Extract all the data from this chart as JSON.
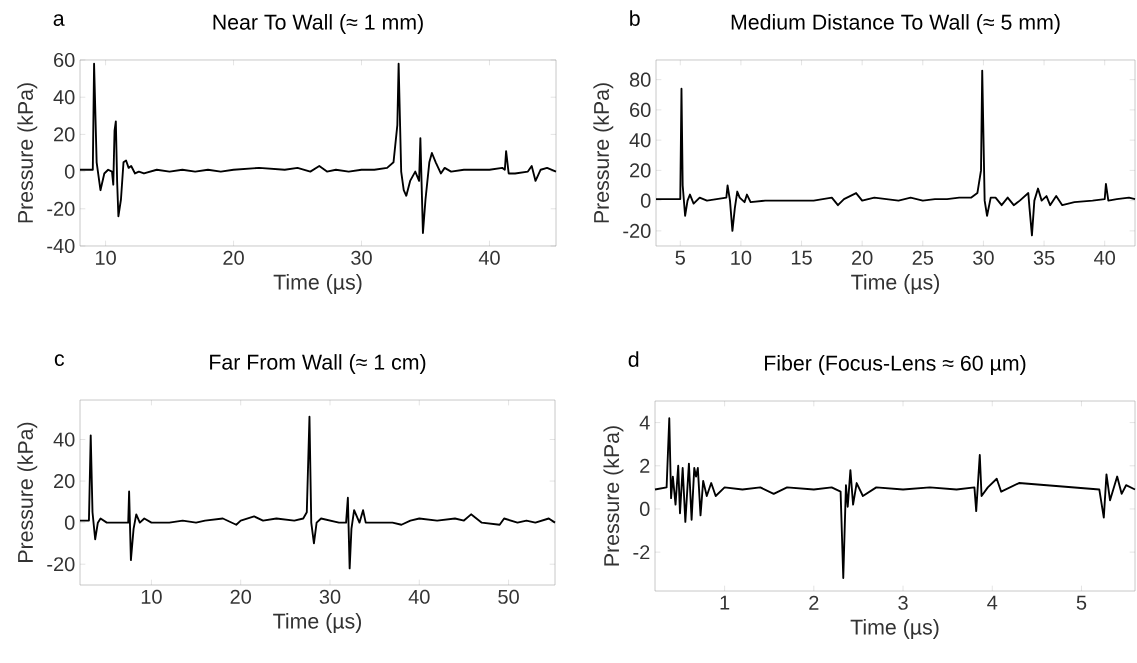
{
  "chart_data": [
    {
      "type": "line",
      "title": "Near To Wall (≈ 1 mm)",
      "annotations": [
        "a"
      ],
      "xlabel": "Time (µs)",
      "ylabel": "Pressure (kPa)",
      "color": "#000000",
      "x": [
        8,
        9.0,
        9.1,
        9.3,
        9.6,
        9.9,
        10.2,
        10.5,
        10.6,
        10.7,
        10.8,
        10.9,
        11.0,
        11.2,
        11.4,
        11.6,
        11.8,
        12.0,
        12.3,
        12.6,
        13,
        14,
        15,
        16,
        17,
        18,
        19,
        20,
        22,
        24,
        25,
        26,
        26.7,
        27.3,
        28,
        29,
        30,
        31,
        32,
        32.5,
        32.8,
        32.9,
        33.1,
        33.3,
        33.5,
        33.8,
        34.2,
        34.5,
        34.6,
        34.8,
        35.0,
        35.3,
        35.5,
        35.8,
        36.2,
        36.5,
        37,
        38,
        39,
        40,
        41,
        41.2,
        41.3,
        41.5,
        42,
        43,
        43.3,
        43.6,
        44,
        44.5,
        45.2
      ],
      "values": [
        1,
        1,
        58,
        5,
        -10,
        -1,
        1,
        0,
        -7,
        22,
        27,
        -5,
        -24,
        -15,
        5,
        6,
        2,
        3,
        -1,
        0,
        -1,
        1,
        0,
        1,
        0,
        1,
        0,
        1,
        2,
        1,
        2,
        0,
        3,
        0,
        1,
        0,
        1,
        1,
        2,
        5,
        25,
        58,
        0,
        -10,
        -13,
        -5,
        0,
        -5,
        18,
        -33,
        -15,
        5,
        10,
        5,
        -1,
        2,
        0,
        1,
        1,
        1,
        2,
        1,
        11,
        -1,
        -1,
        0,
        3,
        -5,
        1,
        2,
        0
      ],
      "xlim": [
        8,
        45.2
      ],
      "ylim": [
        -40,
        60
      ],
      "xticks": [
        10,
        20,
        30,
        40
      ],
      "yticks": [
        -40,
        -20,
        0,
        20,
        40,
        60
      ]
    },
    {
      "type": "line",
      "title": "Medium Distance To Wall  (≈ 5 mm)",
      "annotations": [
        "b"
      ],
      "xlabel": "Time (µs)",
      "ylabel": "Pressure (kPa)",
      "color": "#000000",
      "x": [
        3,
        5.0,
        5.1,
        5.2,
        5.4,
        5.6,
        5.8,
        6.1,
        6.6,
        7.2,
        8.0,
        8.8,
        8.9,
        9.1,
        9.3,
        9.5,
        9.7,
        9.9,
        10.3,
        10.5,
        10.8,
        12,
        14,
        16,
        17.5,
        18,
        18.5,
        19.5,
        20,
        21,
        22,
        23,
        24,
        25,
        26,
        27,
        28,
        29,
        29.5,
        29.8,
        29.9,
        30.1,
        30.3,
        30.6,
        31,
        31.5,
        32,
        32.5,
        33,
        33.7,
        33.8,
        34.0,
        34.2,
        34.5,
        34.8,
        35.2,
        35.5,
        36,
        36.5,
        37.5,
        39,
        40,
        40.1,
        40.3,
        41,
        42,
        42.5
      ],
      "values": [
        1,
        1,
        74,
        10,
        -10,
        0,
        4,
        -2,
        2,
        0,
        1,
        2,
        10,
        0,
        -20,
        -5,
        6,
        2,
        -1,
        4,
        -1,
        0,
        0,
        0,
        2,
        -3,
        1,
        5,
        0,
        2,
        1,
        0,
        2,
        0,
        1,
        1,
        2,
        2,
        5,
        20,
        86,
        0,
        -10,
        2,
        2,
        -3,
        2,
        -3,
        0,
        5,
        -5,
        -23,
        0,
        8,
        0,
        3,
        -3,
        3,
        -3,
        -1,
        0,
        1,
        11,
        0,
        1,
        2,
        1
      ],
      "xlim": [
        3,
        42.5
      ],
      "ylim": [
        -30,
        93
      ],
      "xticks": [
        5,
        10,
        15,
        20,
        25,
        30,
        35,
        40
      ],
      "yticks": [
        -20,
        0,
        20,
        40,
        60,
        80
      ]
    },
    {
      "type": "line",
      "title": "Far From Wall  (≈ 1 cm)",
      "annotations": [
        "c"
      ],
      "xlabel": "Time (µs)",
      "ylabel": "Pressure (kPa)",
      "color": "#000000",
      "x": [
        2,
        3.0,
        3.2,
        3.4,
        3.7,
        4.0,
        4.3,
        5,
        6,
        7,
        7.4,
        7.5,
        7.7,
        8.0,
        8.3,
        8.7,
        9.2,
        10,
        12,
        13.5,
        15,
        16,
        18,
        19.5,
        20,
        21.5,
        22.5,
        24,
        26,
        27,
        27.4,
        27.7,
        27.9,
        28.2,
        28.5,
        29,
        30,
        31,
        31.8,
        32.0,
        32.2,
        32.4,
        32.7,
        33.0,
        33.3,
        33.7,
        34.0,
        35,
        37,
        38,
        39,
        40,
        42,
        44,
        45,
        45.8,
        47,
        49,
        49.5,
        51,
        52,
        53,
        54.5,
        55.2
      ],
      "values": [
        1,
        1,
        42,
        5,
        -8,
        0,
        2,
        0,
        0,
        0,
        0,
        15,
        -18,
        -3,
        4,
        0,
        2,
        0,
        0,
        1,
        0,
        1,
        2,
        -1,
        1,
        3,
        1,
        2,
        1,
        2,
        5,
        51,
        0,
        -10,
        0,
        2,
        1,
        0,
        0,
        12,
        -22,
        -3,
        6,
        3,
        0,
        6,
        0,
        0,
        0,
        -1,
        1,
        2,
        1,
        2,
        1,
        4,
        0,
        -1,
        2,
        0,
        1,
        0,
        2,
        0
      ],
      "xlim": [
        2,
        55.2
      ],
      "ylim": [
        -30,
        59
      ],
      "xticks": [
        10,
        20,
        30,
        40,
        50
      ],
      "yticks": [
        -20,
        0,
        20,
        40
      ]
    },
    {
      "type": "line",
      "title": "Fiber (Focus-Lens ≈ 60 µm)",
      "annotations": [
        "d"
      ],
      "xlabel": "Time (µs)",
      "ylabel": "Pressure (kPa)",
      "color": "#000000",
      "x": [
        0.22,
        0.35,
        0.38,
        0.4,
        0.42,
        0.45,
        0.48,
        0.5,
        0.53,
        0.56,
        0.6,
        0.63,
        0.66,
        0.68,
        0.7,
        0.73,
        0.76,
        0.8,
        0.85,
        0.9,
        1.0,
        1.2,
        1.4,
        1.55,
        1.7,
        2.0,
        2.2,
        2.3,
        2.33,
        2.36,
        2.38,
        2.41,
        2.44,
        2.48,
        2.55,
        2.7,
        3.0,
        3.3,
        3.6,
        3.8,
        3.82,
        3.86,
        3.88,
        3.95,
        4.05,
        4.1,
        4.3,
        4.6,
        4.9,
        5.2,
        5.25,
        5.28,
        5.32,
        5.4,
        5.45,
        5.5,
        5.6
      ],
      "values": [
        0.9,
        1.0,
        4.2,
        0.5,
        1.5,
        0.2,
        2.0,
        -0.2,
        1.9,
        -0.6,
        2.1,
        -0.5,
        1.9,
        1.5,
        1.9,
        -0.3,
        1.3,
        0.6,
        1.2,
        0.6,
        1.0,
        0.9,
        1.0,
        0.7,
        1.0,
        0.9,
        1.0,
        0.8,
        -3.2,
        1.1,
        0.1,
        1.8,
        0.2,
        1.2,
        0.6,
        1.0,
        0.9,
        1.0,
        0.9,
        1.0,
        -0.1,
        2.5,
        0.6,
        1.0,
        1.4,
        0.8,
        1.2,
        1.1,
        1.0,
        0.9,
        -0.4,
        1.6,
        0.4,
        1.5,
        0.7,
        1.1,
        0.9
      ],
      "xlim": [
        0.22,
        5.6
      ],
      "ylim": [
        -3.8,
        5
      ],
      "xticks": [
        1,
        2,
        3,
        4,
        5
      ],
      "yticks": [
        -2,
        0,
        2,
        4
      ]
    }
  ]
}
